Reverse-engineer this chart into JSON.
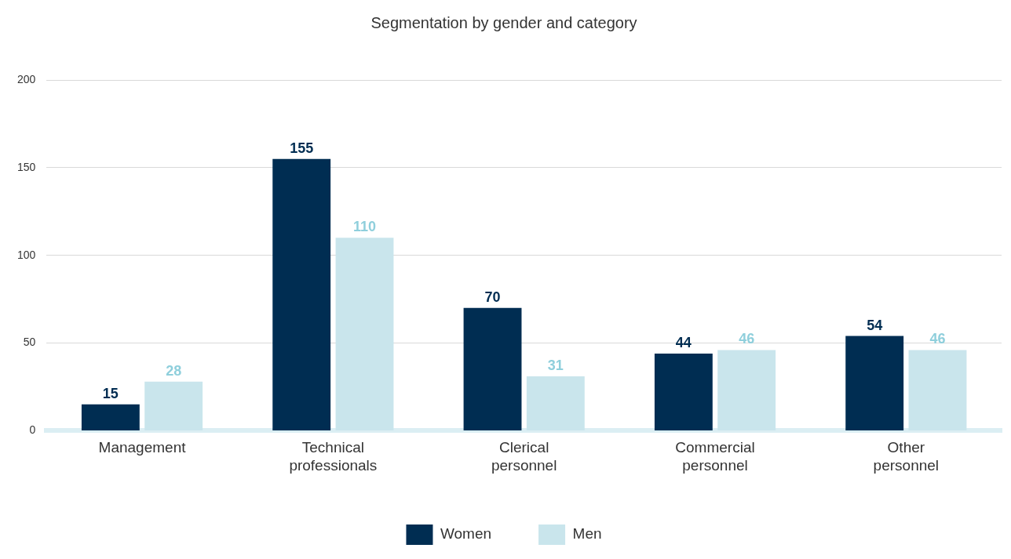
{
  "chart_data": {
    "type": "bar",
    "title": "Segmentation by gender and category",
    "categories": [
      "Management",
      "Technical professionals",
      "Clerical personnel",
      "Commercial personnel",
      "Other personnel"
    ],
    "series": [
      {
        "name": "Women",
        "color": "#002d52",
        "values": [
          15,
          155,
          70,
          44,
          54
        ]
      },
      {
        "name": "Men",
        "color": "#c9e5ec",
        "values": [
          28,
          110,
          31,
          46,
          46
        ]
      }
    ],
    "ylim": [
      0,
      200
    ],
    "yticks": [
      0,
      50,
      100,
      150,
      200
    ],
    "grid": "y",
    "legend": "bottom",
    "data_labels": true
  }
}
